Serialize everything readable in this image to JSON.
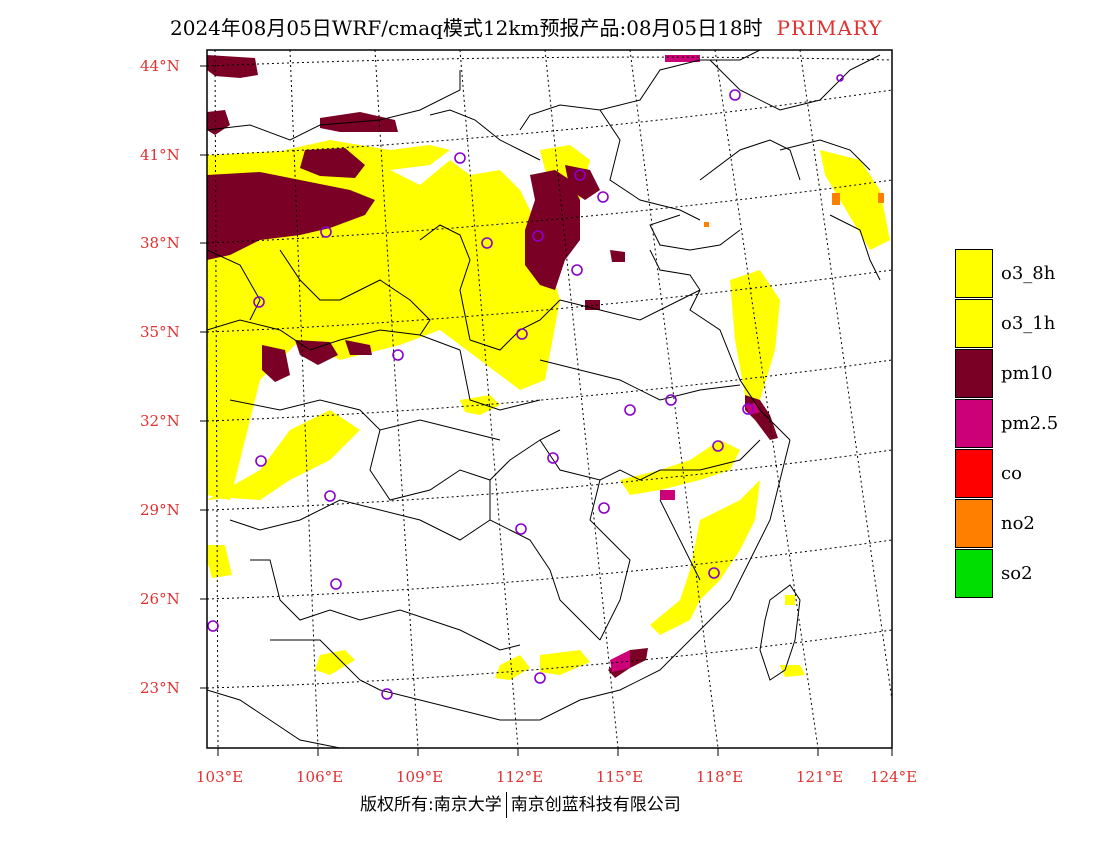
{
  "title": {
    "main": "2024年08月05日WRF/cmaq模式12km预报产品:08月05日18时",
    "tag": "PRIMARY"
  },
  "lat_labels": [
    "44°N",
    "41°N",
    "38°N",
    "35°N",
    "32°N",
    "29°N",
    "26°N",
    "23°N"
  ],
  "lon_labels": [
    "103°E",
    "106°E",
    "109°E",
    "112°E",
    "115°E",
    "118°E",
    "121°E",
    "124°E"
  ],
  "legend": [
    {
      "label": "o3_8h",
      "color": "#ffff00"
    },
    {
      "label": "o3_1h",
      "color": "#ffff00"
    },
    {
      "label": "pm10",
      "color": "#7a0026"
    },
    {
      "label": "pm2.5",
      "color": "#cc0077"
    },
    {
      "label": "co",
      "color": "#ff0000"
    },
    {
      "label": "no2",
      "color": "#ff7f00"
    },
    {
      "label": "so2",
      "color": "#00dd00"
    }
  ],
  "footer": {
    "left": "版权所有:南京大学",
    "right": "南京创蓝科技有限公司"
  }
}
